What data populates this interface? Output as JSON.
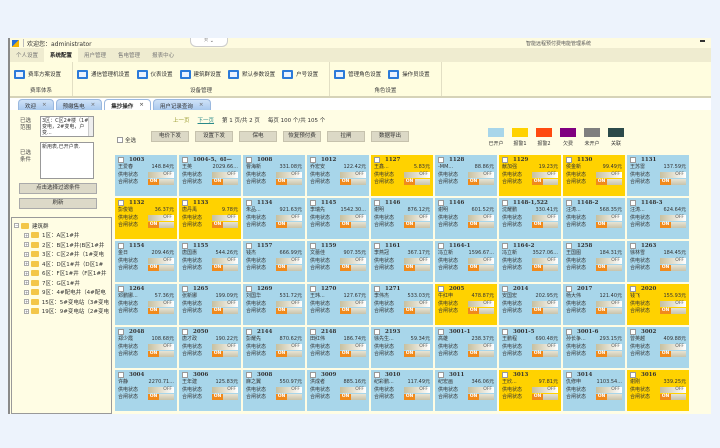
{
  "titlebar": {
    "welcome": "欢迎您：administrator",
    "app_title": "智能远程预付费电能管理系统"
  },
  "menu": [
    {
      "label": "个人设置"
    },
    {
      "label": "系统配置",
      "active": true
    },
    {
      "label": "用户管理"
    },
    {
      "label": "售电管理"
    },
    {
      "label": "报表中心"
    }
  ],
  "ribbon": [
    {
      "label": "费率体系",
      "buttons": [
        "费率方案设置"
      ]
    },
    {
      "label": "设备管理",
      "buttons": [
        "通信管理机设置",
        "仪表设置",
        "建筑群设置",
        "默认参数设置",
        "户号设置"
      ]
    },
    {
      "label": "角色设置",
      "buttons": [
        "管理角色设置",
        "操作员设置"
      ]
    }
  ],
  "tabs": [
    {
      "label": "欢迎"
    },
    {
      "label": "预缴售电"
    },
    {
      "label": "集抄操作",
      "active": true
    },
    {
      "label": "用户记录查询"
    }
  ],
  "tab_close": "×",
  "left": {
    "scope_label": "已选范围",
    "scope_value": "3区：C区2#楼（1#变电，2#变电，户变...",
    "cond_label": "已选条件",
    "cond_value": "新用表,已开户表.",
    "filter_button": "点击选择过滤条件",
    "refresh_button": "刷新",
    "tree_root": "建筑群",
    "tree": [
      "1区：A区1#井",
      "2区：B区1#井(B区1#井",
      "3区：C区2#井（1#变电",
      "4区：D区1#井（D区1#",
      "6区：F区1#井（F区1#井",
      "7区：G区1#井",
      "9区：4#配电井（4#配电",
      "15区：5#变电站（3#变电",
      "19区：9#变电站（2#变电"
    ]
  },
  "toolbar": {
    "prev": "上一页",
    "next": "下一页",
    "page_text": "第 1 页/共 2 页",
    "per_page_text": "每页 100 个/共 105 个",
    "select_all": "全选",
    "actions": [
      "电价下发",
      "设置下发",
      "保电",
      "恢复预付费",
      "拉闸",
      "数据导出"
    ]
  },
  "legend": [
    {
      "label": "已开户",
      "color": "#a8d6ea"
    },
    {
      "label": "报警1",
      "color": "#ffd200"
    },
    {
      "label": "报警2",
      "color": "#ff4a10"
    },
    {
      "label": "欠费",
      "color": "#800080"
    },
    {
      "label": "未开户",
      "color": "#7f7f7f"
    },
    {
      "label": "关联",
      "color": "#2c4a4a"
    }
  ],
  "cell_labels": {
    "supply": "供电状态",
    "switch": "合闸状态",
    "off": "OFF",
    "on": "ON"
  },
  "meters": [
    {
      "id": "1003",
      "name": "王爱春",
      "amount": "148.84元",
      "status": "已开户"
    },
    {
      "id": "1004-5、6I—",
      "name": "王英",
      "amount": "2029.66...",
      "status": "已开户"
    },
    {
      "id": "1008",
      "name": "曹海新",
      "amount": "331.08元",
      "status": "已开户"
    },
    {
      "id": "1012",
      "name": "乔宏安",
      "amount": "122.42元",
      "status": "已开户"
    },
    {
      "id": "1127",
      "name": "王鑫...",
      "amount": "5.83元",
      "status": "报警1"
    },
    {
      "id": "1128",
      "name": "-MM...",
      "amount": "88.86元",
      "status": "已开户"
    },
    {
      "id": "1129",
      "name": "献加强",
      "amount": "19.23元",
      "status": "报警1"
    },
    {
      "id": "1130",
      "name": "侯金新",
      "amount": "99.49元",
      "status": "报警1"
    },
    {
      "id": "1131",
      "name": "王苏雷",
      "amount": "137.59元",
      "status": "已开户"
    },
    {
      "id": "1132",
      "name": "彭俊锴",
      "amount": "36.37元",
      "status": "报警1"
    },
    {
      "id": "1133",
      "name": "唐丹禹",
      "amount": "9.78元",
      "status": "报警1"
    },
    {
      "id": "1134",
      "name": "朱品...",
      "amount": "921.63元",
      "status": "已开户"
    },
    {
      "id": "1145",
      "name": "李瑞先",
      "amount": "1542.30...",
      "status": "已开户"
    },
    {
      "id": "1146",
      "name": "谢明",
      "amount": "876.12元",
      "status": "已开户"
    },
    {
      "id": "1146",
      "name": "谢明",
      "amount": "601.52元",
      "status": "已开户"
    },
    {
      "id": "1148-1,522",
      "name": "沈耀鹏",
      "amount": "330.41元",
      "status": "已开户"
    },
    {
      "id": "1148-2",
      "name": "汪涛...",
      "amount": "568.35元",
      "status": "已开户"
    },
    {
      "id": "1148-3",
      "name": "汪涛...",
      "amount": "624.64元",
      "status": "已开户"
    },
    {
      "id": "1154",
      "name": "金日",
      "amount": "209.46元",
      "status": "已开户"
    },
    {
      "id": "1155",
      "name": "唐国惠",
      "amount": "544.26元",
      "status": "已开户"
    },
    {
      "id": "1157",
      "name": "钱杰",
      "amount": "666.99元",
      "status": "已开户"
    },
    {
      "id": "1159",
      "name": "文蕾佳",
      "amount": "907.35元",
      "status": "已开户"
    },
    {
      "id": "1161",
      "name": "李燕冠",
      "amount": "367.17元",
      "status": "已开户"
    },
    {
      "id": "1164-1",
      "name": "冯立新",
      "amount": "1596.67...",
      "status": "已开户"
    },
    {
      "id": "1164-2",
      "name": "冯立新",
      "amount": "3527.06...",
      "status": "已开户"
    },
    {
      "id": "1258",
      "name": "王国图",
      "amount": "184.31元",
      "status": "已开户"
    },
    {
      "id": "1263",
      "name": "徐林雪",
      "amount": "184.45元",
      "status": "已开户"
    },
    {
      "id": "1264",
      "name": "邓鹏娜...",
      "amount": "57.36元",
      "status": "已开户"
    },
    {
      "id": "1265",
      "name": "张新娜",
      "amount": "199.09元",
      "status": "已开户"
    },
    {
      "id": "1269",
      "name": "刘国华",
      "amount": "531.72元",
      "status": "已开户"
    },
    {
      "id": "1270",
      "name": "王玮...",
      "amount": "127.67元",
      "status": "已开户"
    },
    {
      "id": "1271",
      "name": "李伟杰",
      "amount": "533.03元",
      "status": "已开户"
    },
    {
      "id": "2005",
      "name": "牛红申",
      "amount": "478.87元",
      "status": "报警1"
    },
    {
      "id": "2014",
      "name": "安国宏",
      "amount": "202.95元",
      "status": "已开户"
    },
    {
      "id": "2017",
      "name": "杨大伟",
      "amount": "121.40元",
      "status": "已开户"
    },
    {
      "id": "2020",
      "name": "钱飞",
      "amount": "155.93元",
      "status": "报警1"
    },
    {
      "id": "2048",
      "name": "郑少霞",
      "amount": "108.68元",
      "status": "已开户"
    },
    {
      "id": "2050",
      "name": "唐才政",
      "amount": "190.22元",
      "status": "已开户"
    },
    {
      "id": "2144",
      "name": "彭耀先",
      "amount": "870.62元",
      "status": "已开户"
    },
    {
      "id": "2148",
      "name": "田红伟",
      "amount": "186.74元",
      "status": "已开户"
    },
    {
      "id": "2193",
      "name": "徐先生...",
      "amount": "59.34元",
      "status": "已开户"
    },
    {
      "id": "3001-1",
      "name": "高雄",
      "amount": "238.37元",
      "status": "已开户"
    },
    {
      "id": "3001-5",
      "name": "王鹏程",
      "amount": "690.48元",
      "status": "已开户"
    },
    {
      "id": "3001-6",
      "name": "孙长争...",
      "amount": "293.15元",
      "status": "已开户"
    },
    {
      "id": "3002",
      "name": "曾英越",
      "amount": "409.88元",
      "status": "已开户"
    },
    {
      "id": "3004",
      "name": "许静",
      "amount": "2270.71...",
      "status": "已开户"
    },
    {
      "id": "3006",
      "name": "王年建",
      "amount": "125.83元",
      "status": "已开户"
    },
    {
      "id": "3008",
      "name": "麻之翼",
      "amount": "550.97元",
      "status": "已开户"
    },
    {
      "id": "3009",
      "name": "洪成者",
      "amount": "885.16元",
      "status": "已开户"
    },
    {
      "id": "3010",
      "name": "纪彩鹏...",
      "amount": "117.49元",
      "status": "已开户"
    },
    {
      "id": "3011",
      "name": "纪宏画",
      "amount": "346.06元",
      "status": "已开户"
    },
    {
      "id": "3013",
      "name": "王欣...",
      "amount": "97.81元",
      "status": "报警1"
    },
    {
      "id": "3014",
      "name": "仇修申",
      "amount": "1103.54...",
      "status": "已开户"
    },
    {
      "id": "3016",
      "name": "谢刚",
      "amount": "339.25元",
      "status": "报警1"
    }
  ]
}
